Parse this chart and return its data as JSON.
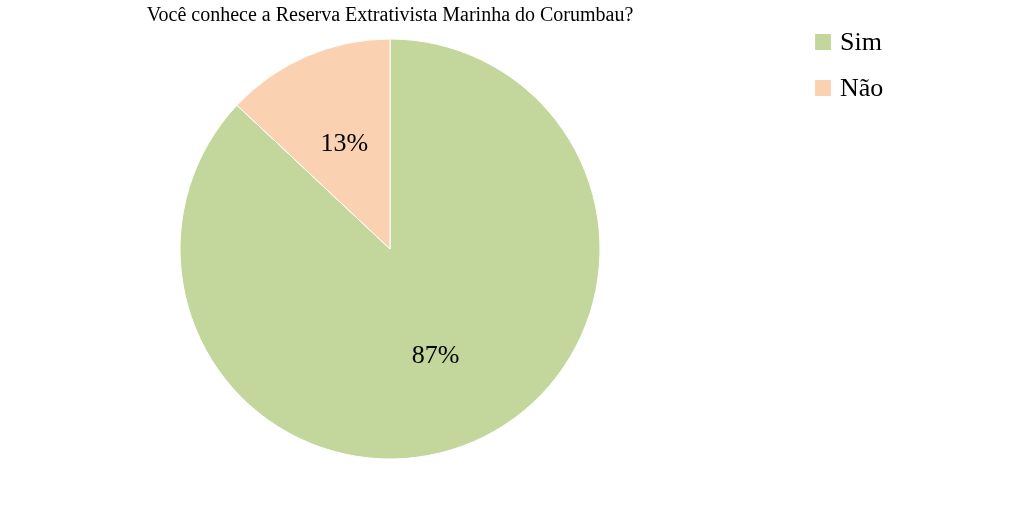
{
  "chart_data": {
    "type": "pie",
    "title": "Você conhece a Reserva Extrativista Marinha do Corumbau?",
    "categories": [
      "Sim",
      "Não"
    ],
    "values": [
      87,
      13
    ],
    "colors": [
      "#c3d69b",
      "#fad1b1"
    ],
    "value_labels": [
      "87%",
      "13%"
    ],
    "legend": "right"
  }
}
